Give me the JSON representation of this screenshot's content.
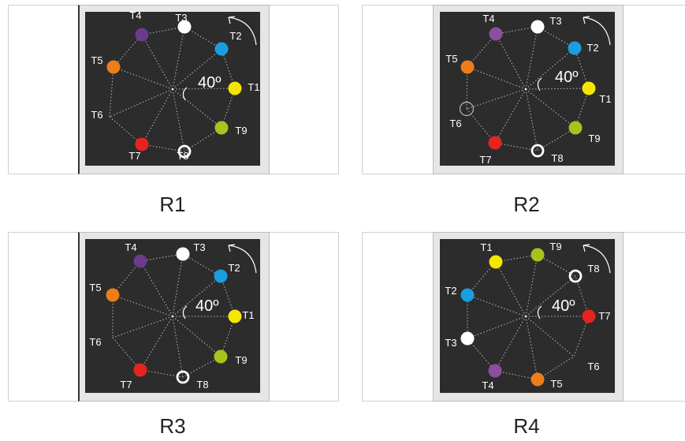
{
  "panels": [
    {
      "caption": "R1",
      "angle_label": "40º",
      "targets": [
        {
          "label": "T1",
          "color": "#f5e600",
          "filled": true
        },
        {
          "label": "T2",
          "color": "#1b9ee0",
          "filled": true
        },
        {
          "label": "T3",
          "color": "#ffffff",
          "filled": true
        },
        {
          "label": "T4",
          "color": "#6a3a8c",
          "filled": true
        },
        {
          "label": "T5",
          "color": "#ef7d1a",
          "filled": true
        },
        {
          "label": "T6",
          "color": "",
          "filled": false,
          "visible": false
        },
        {
          "label": "T7",
          "color": "#e52421",
          "filled": true
        },
        {
          "label": "T8",
          "color": "#ffffff",
          "filled": false
        },
        {
          "label": "T9",
          "color": "#a6c31e",
          "filled": true
        }
      ]
    },
    {
      "caption": "R2",
      "angle_label": "40º",
      "targets": [
        {
          "label": "T1",
          "color": "#f5e600",
          "filled": true
        },
        {
          "label": "T2",
          "color": "#1b9ee0",
          "filled": true
        },
        {
          "label": "T3",
          "color": "#ffffff",
          "filled": true
        },
        {
          "label": "T4",
          "color": "#8a4f9e",
          "filled": true
        },
        {
          "label": "T5",
          "color": "#ef7d1a",
          "filled": true
        },
        {
          "label": "T6",
          "color": "#bbbbbb",
          "filled": false,
          "thin": true
        },
        {
          "label": "T7",
          "color": "#e52421",
          "filled": true
        },
        {
          "label": "T8",
          "color": "#ffffff",
          "filled": false
        },
        {
          "label": "T9",
          "color": "#a6c31e",
          "filled": true
        }
      ]
    },
    {
      "caption": "R3",
      "angle_label": "40º",
      "targets": [
        {
          "label": "T1",
          "color": "#f5e600",
          "filled": true
        },
        {
          "label": "T2",
          "color": "#1b9ee0",
          "filled": true
        },
        {
          "label": "T3",
          "color": "#ffffff",
          "filled": true
        },
        {
          "label": "T4",
          "color": "#6a3a8c",
          "filled": true
        },
        {
          "label": "T5",
          "color": "#ef7d1a",
          "filled": true
        },
        {
          "label": "T6",
          "color": "",
          "filled": false,
          "visible": false
        },
        {
          "label": "T7",
          "color": "#e52421",
          "filled": true
        },
        {
          "label": "T8",
          "color": "#ffffff",
          "filled": false
        },
        {
          "label": "T9",
          "color": "#a6c31e",
          "filled": true
        }
      ]
    },
    {
      "caption": "R4",
      "angle_label": "40º",
      "targets": [
        {
          "label": "T1",
          "color": "#f5e600",
          "filled": true
        },
        {
          "label": "T2",
          "color": "#1b9ee0",
          "filled": true
        },
        {
          "label": "T3",
          "color": "#ffffff",
          "filled": true
        },
        {
          "label": "T4",
          "color": "#8a4f9e",
          "filled": true
        },
        {
          "label": "T5",
          "color": "#ef7d1a",
          "filled": true
        },
        {
          "label": "T6",
          "color": "",
          "filled": false,
          "visible": false
        },
        {
          "label": "T7",
          "color": "#e52421",
          "filled": true
        },
        {
          "label": "T8",
          "color": "#ffffff",
          "filled": false
        },
        {
          "label": "T9",
          "color": "#a6c31e",
          "filled": true
        }
      ]
    }
  ]
}
